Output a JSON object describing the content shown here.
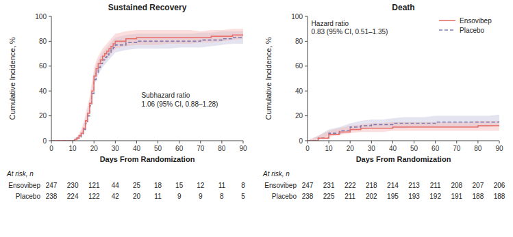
{
  "chart_data": [
    {
      "type": "step",
      "title": "Sustained Recovery",
      "x_label": "Days From Randomization",
      "y_label": "Cumulative Incidence, %",
      "xlim": [
        0,
        90
      ],
      "ylim": [
        0,
        100
      ],
      "xticks": [
        0,
        10,
        20,
        30,
        40,
        50,
        60,
        70,
        80,
        90
      ],
      "yticks": [
        0,
        20,
        40,
        60,
        80,
        100
      ],
      "grid": false,
      "series": [
        {
          "name": "Ensovibep",
          "color": "#E8706A",
          "ci_color": "#F2AEAD",
          "line_style": "solid",
          "x": [
            0,
            10,
            11,
            12,
            13,
            14,
            15,
            16,
            17,
            18,
            19,
            20,
            21,
            22,
            23,
            24,
            25,
            26,
            27,
            28,
            29,
            30,
            35,
            40,
            45,
            50,
            55,
            60,
            65,
            70,
            75,
            80,
            85,
            90
          ],
          "values": [
            0,
            0,
            1,
            2,
            4,
            6,
            10,
            16,
            22,
            30,
            40,
            52,
            58,
            62,
            65,
            68,
            70,
            72,
            74,
            76,
            78,
            80,
            82,
            83,
            83,
            83,
            83,
            83,
            83,
            83,
            84,
            84,
            85,
            85
          ],
          "lower": [
            0,
            0,
            0,
            1,
            2,
            4,
            7,
            12,
            17,
            25,
            34,
            46,
            52,
            56,
            59,
            62,
            64,
            66,
            68,
            70,
            72,
            74,
            76,
            77,
            77,
            77,
            78,
            78,
            78,
            79,
            79,
            80,
            81,
            82
          ],
          "upper": [
            0,
            0,
            2,
            3,
            6,
            9,
            14,
            21,
            28,
            36,
            47,
            58,
            64,
            68,
            71,
            74,
            76,
            78,
            80,
            82,
            84,
            86,
            88,
            89,
            89,
            89,
            89,
            89,
            89,
            88,
            89,
            89,
            90,
            90
          ]
        },
        {
          "name": "Placebo",
          "color": "#7B7BB0",
          "ci_color": "#BCBCDA",
          "line_style": "dashed",
          "x": [
            0,
            10,
            11,
            12,
            13,
            14,
            15,
            16,
            17,
            18,
            19,
            20,
            21,
            22,
            23,
            24,
            25,
            26,
            27,
            28,
            29,
            30,
            35,
            40,
            45,
            50,
            55,
            60,
            65,
            70,
            75,
            80,
            85,
            90
          ],
          "values": [
            0,
            0,
            1,
            2,
            3,
            5,
            9,
            14,
            20,
            28,
            38,
            49,
            55,
            59,
            62,
            65,
            67,
            69,
            71,
            73,
            75,
            77,
            79,
            80,
            80,
            80,
            80,
            80,
            80,
            81,
            81,
            82,
            83,
            83
          ],
          "lower": [
            0,
            0,
            0,
            1,
            2,
            3,
            7,
            10,
            16,
            23,
            33,
            43,
            49,
            53,
            56,
            59,
            61,
            63,
            65,
            67,
            69,
            71,
            73,
            74,
            74,
            74,
            74,
            75,
            75,
            75,
            76,
            77,
            78,
            78
          ],
          "upper": [
            0,
            0,
            2,
            3,
            5,
            7,
            12,
            18,
            25,
            33,
            43,
            55,
            61,
            65,
            68,
            71,
            73,
            75,
            77,
            79,
            81,
            83,
            85,
            86,
            86,
            86,
            86,
            86,
            86,
            87,
            87,
            88,
            88,
            88
          ]
        }
      ],
      "annotation": "Subhazard ratio\n1.06 (95% CI, 0.88–1.28)",
      "at_risk": {
        "label": "At risk, n",
        "x": [
          0,
          10,
          20,
          30,
          40,
          50,
          60,
          70,
          80,
          90
        ],
        "rows": [
          {
            "name": "Ensovibep",
            "values": [
              247,
              230,
              121,
              44,
              25,
              18,
              15,
              12,
              11,
              8
            ]
          },
          {
            "name": "Placebo",
            "values": [
              238,
              224,
              122,
              42,
              20,
              11,
              9,
              9,
              8,
              5
            ]
          }
        ]
      }
    },
    {
      "type": "step",
      "title": "Death",
      "x_label": "Days From Randomization",
      "y_label": "Cumulative Incidence, %",
      "xlim": [
        0,
        90
      ],
      "ylim": [
        0,
        100
      ],
      "xticks": [
        0,
        10,
        20,
        30,
        40,
        50,
        60,
        70,
        80,
        90
      ],
      "yticks": [
        0,
        20,
        40,
        60,
        80,
        100
      ],
      "grid": false,
      "legend": "upper right",
      "series": [
        {
          "name": "Ensovibep",
          "color": "#E8706A",
          "ci_color": "#F2AEAD",
          "line_style": "solid",
          "x": [
            0,
            5,
            10,
            15,
            20,
            25,
            30,
            35,
            40,
            45,
            50,
            55,
            60,
            65,
            70,
            75,
            80,
            85,
            90
          ],
          "values": [
            0,
            2,
            5,
            7,
            9,
            10,
            10,
            10,
            11,
            11,
            11,
            11,
            11,
            11,
            11,
            11,
            12,
            12,
            12
          ],
          "lower": [
            0,
            1,
            3,
            5,
            6,
            7,
            7,
            7,
            8,
            8,
            8,
            8,
            8,
            8,
            8,
            8,
            8,
            8,
            8
          ],
          "upper": [
            0,
            4,
            8,
            10,
            12,
            13,
            14,
            14,
            15,
            15,
            15,
            15,
            15,
            15,
            15,
            15,
            16,
            16,
            16
          ]
        },
        {
          "name": "Placebo",
          "color": "#7B7BB0",
          "ci_color": "#BCBCDA",
          "line_style": "dashed",
          "x": [
            0,
            5,
            10,
            15,
            20,
            25,
            30,
            35,
            40,
            45,
            50,
            55,
            60,
            65,
            70,
            75,
            80,
            85,
            90
          ],
          "values": [
            0,
            2,
            6,
            8,
            11,
            12,
            13,
            13,
            14,
            14,
            14,
            14,
            15,
            15,
            15,
            15,
            15,
            15,
            16
          ],
          "lower": [
            0,
            1,
            4,
            5,
            8,
            9,
            10,
            10,
            10,
            10,
            11,
            11,
            11,
            11,
            11,
            11,
            11,
            11,
            12
          ],
          "upper": [
            0,
            4,
            9,
            11,
            14,
            16,
            17,
            17,
            18,
            19,
            19,
            19,
            20,
            20,
            20,
            20,
            20,
            20,
            21
          ]
        }
      ],
      "annotation": "Hazard ratio\n0.83 (95% CI, 0.51–1.35)",
      "at_risk": {
        "label": "At risk, n",
        "x": [
          0,
          10,
          20,
          30,
          40,
          50,
          60,
          70,
          80,
          90
        ],
        "rows": [
          {
            "name": "Ensovibep",
            "values": [
              247,
              231,
              222,
              218,
              214,
              213,
              211,
              208,
              207,
              206
            ]
          },
          {
            "name": "Placebo",
            "values": [
              238,
              225,
              211,
              202,
              195,
              193,
              192,
              191,
              188,
              188
            ]
          }
        ]
      }
    }
  ]
}
